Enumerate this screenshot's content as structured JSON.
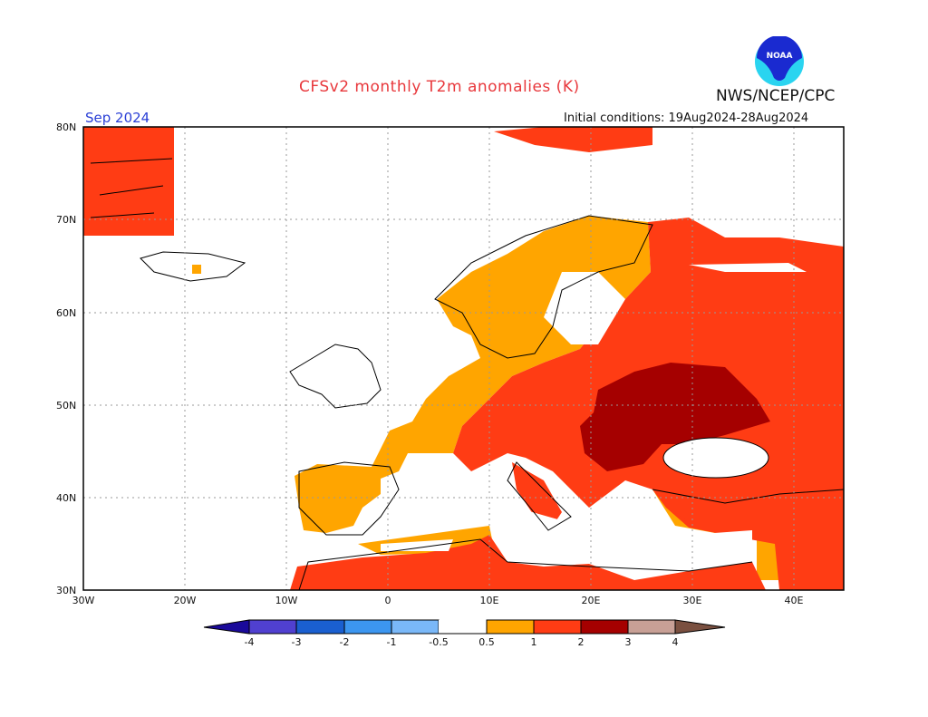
{
  "header": {
    "title": "CFSv2 monthly T2m anomalies (K)",
    "agency": "NWS/NCEP/CPC",
    "target_month": "Sep 2024",
    "initial_conditions": "Initial conditions: 19Aug2024-28Aug2024",
    "logo_text": "NOAA"
  },
  "map": {
    "region": "Europe",
    "lon_range": [
      -30,
      45
    ],
    "lat_range": [
      30,
      80
    ],
    "lat_labels": [
      "80N",
      "70N",
      "60N",
      "50N",
      "40N",
      "30N"
    ],
    "lon_labels": [
      "30W",
      "20W",
      "10W",
      "0",
      "10E",
      "20E",
      "30E",
      "40E"
    ]
  },
  "legend": {
    "unit": "K",
    "labels": [
      "-4",
      "-3",
      "-2",
      "-1",
      "-0.5",
      "0.5",
      "1",
      "2",
      "3",
      "4"
    ],
    "colors": [
      "#1a0a9a",
      "#5040d0",
      "#1a5fd0",
      "#3c96f0",
      "#7ab8f8",
      "#ffffff",
      "#ffa500",
      "#ff3c14",
      "#a50000",
      "#c8a096",
      "#7a5040"
    ]
  }
}
